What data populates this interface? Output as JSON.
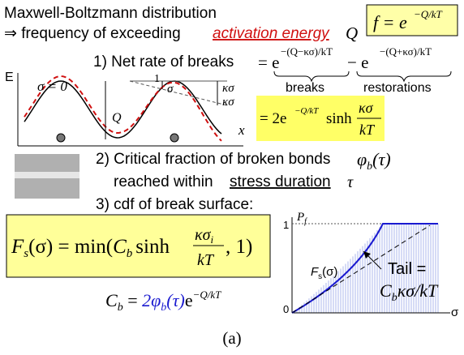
{
  "header": {
    "title": "Maxwell-Boltzmann distribution",
    "line2": "⇒ frequency of exceeding",
    "link": "activation energy",
    "symbol": "Q"
  },
  "boltzmann_box": {
    "base": "f = e",
    "exponent": "−Q/kT"
  },
  "potential_plot": {
    "y_axis": "E",
    "x_axis": "x",
    "unstressed": "σ = 0",
    "barrier": "Q",
    "slope_run": "1",
    "slope_rise": "σ",
    "shift_up": "κσ",
    "shift_down": "κσ"
  },
  "step1": {
    "label": "1) Net rate of breaks",
    "eq_start": "= e",
    "exp_breaks": "−(Q−κσ)/kT",
    "minus": "− e",
    "exp_restorations": "−(Q+κσ)/kT",
    "brace_breaks": "breaks",
    "brace_restorations": "restorations"
  },
  "step1_result": {
    "start": "= 2e",
    "exponent": "−Q/kT",
    "func": "sinh",
    "numerator": "κσ",
    "denominator": "kT"
  },
  "step2": {
    "label": "2) Critical fraction of broken bonds",
    "phi": "φ",
    "phi_sub": "b",
    "phi_arg": "(τ)",
    "line2": "reached within",
    "duration": "stress duration",
    "tau": "τ"
  },
  "step3": {
    "label": "3) cdf of break surface:"
  },
  "cdf_formula": {
    "F": "F",
    "F_sub": "s",
    "lhs_rest": "(σ) = min(",
    "C": "C",
    "C_sub": "b",
    "func": "sinh",
    "numerator": "κσ",
    "num_sub": "i",
    "denominator": "kT",
    "tail": ", 1)"
  },
  "cb_formula": {
    "C": "C",
    "C_sub": "b",
    "eq": " = ",
    "coef": "2φ",
    "coef_sub": "b",
    "coef_arg": "(τ)",
    "e": "e",
    "exponent": "−Q/kT"
  },
  "cdf_plot": {
    "y_label": "P",
    "y_label_sub": "f",
    "y_top": "1",
    "y_bottom": "0",
    "x_label": "σ",
    "curve_label": "F",
    "curve_label_sub": "s",
    "curve_label_arg": "(σ)",
    "tail_label": "Tail =",
    "tail_expr": "C",
    "tail_sub": "b",
    "tail_rest": "κσ/kT"
  },
  "caption": "(a)"
}
